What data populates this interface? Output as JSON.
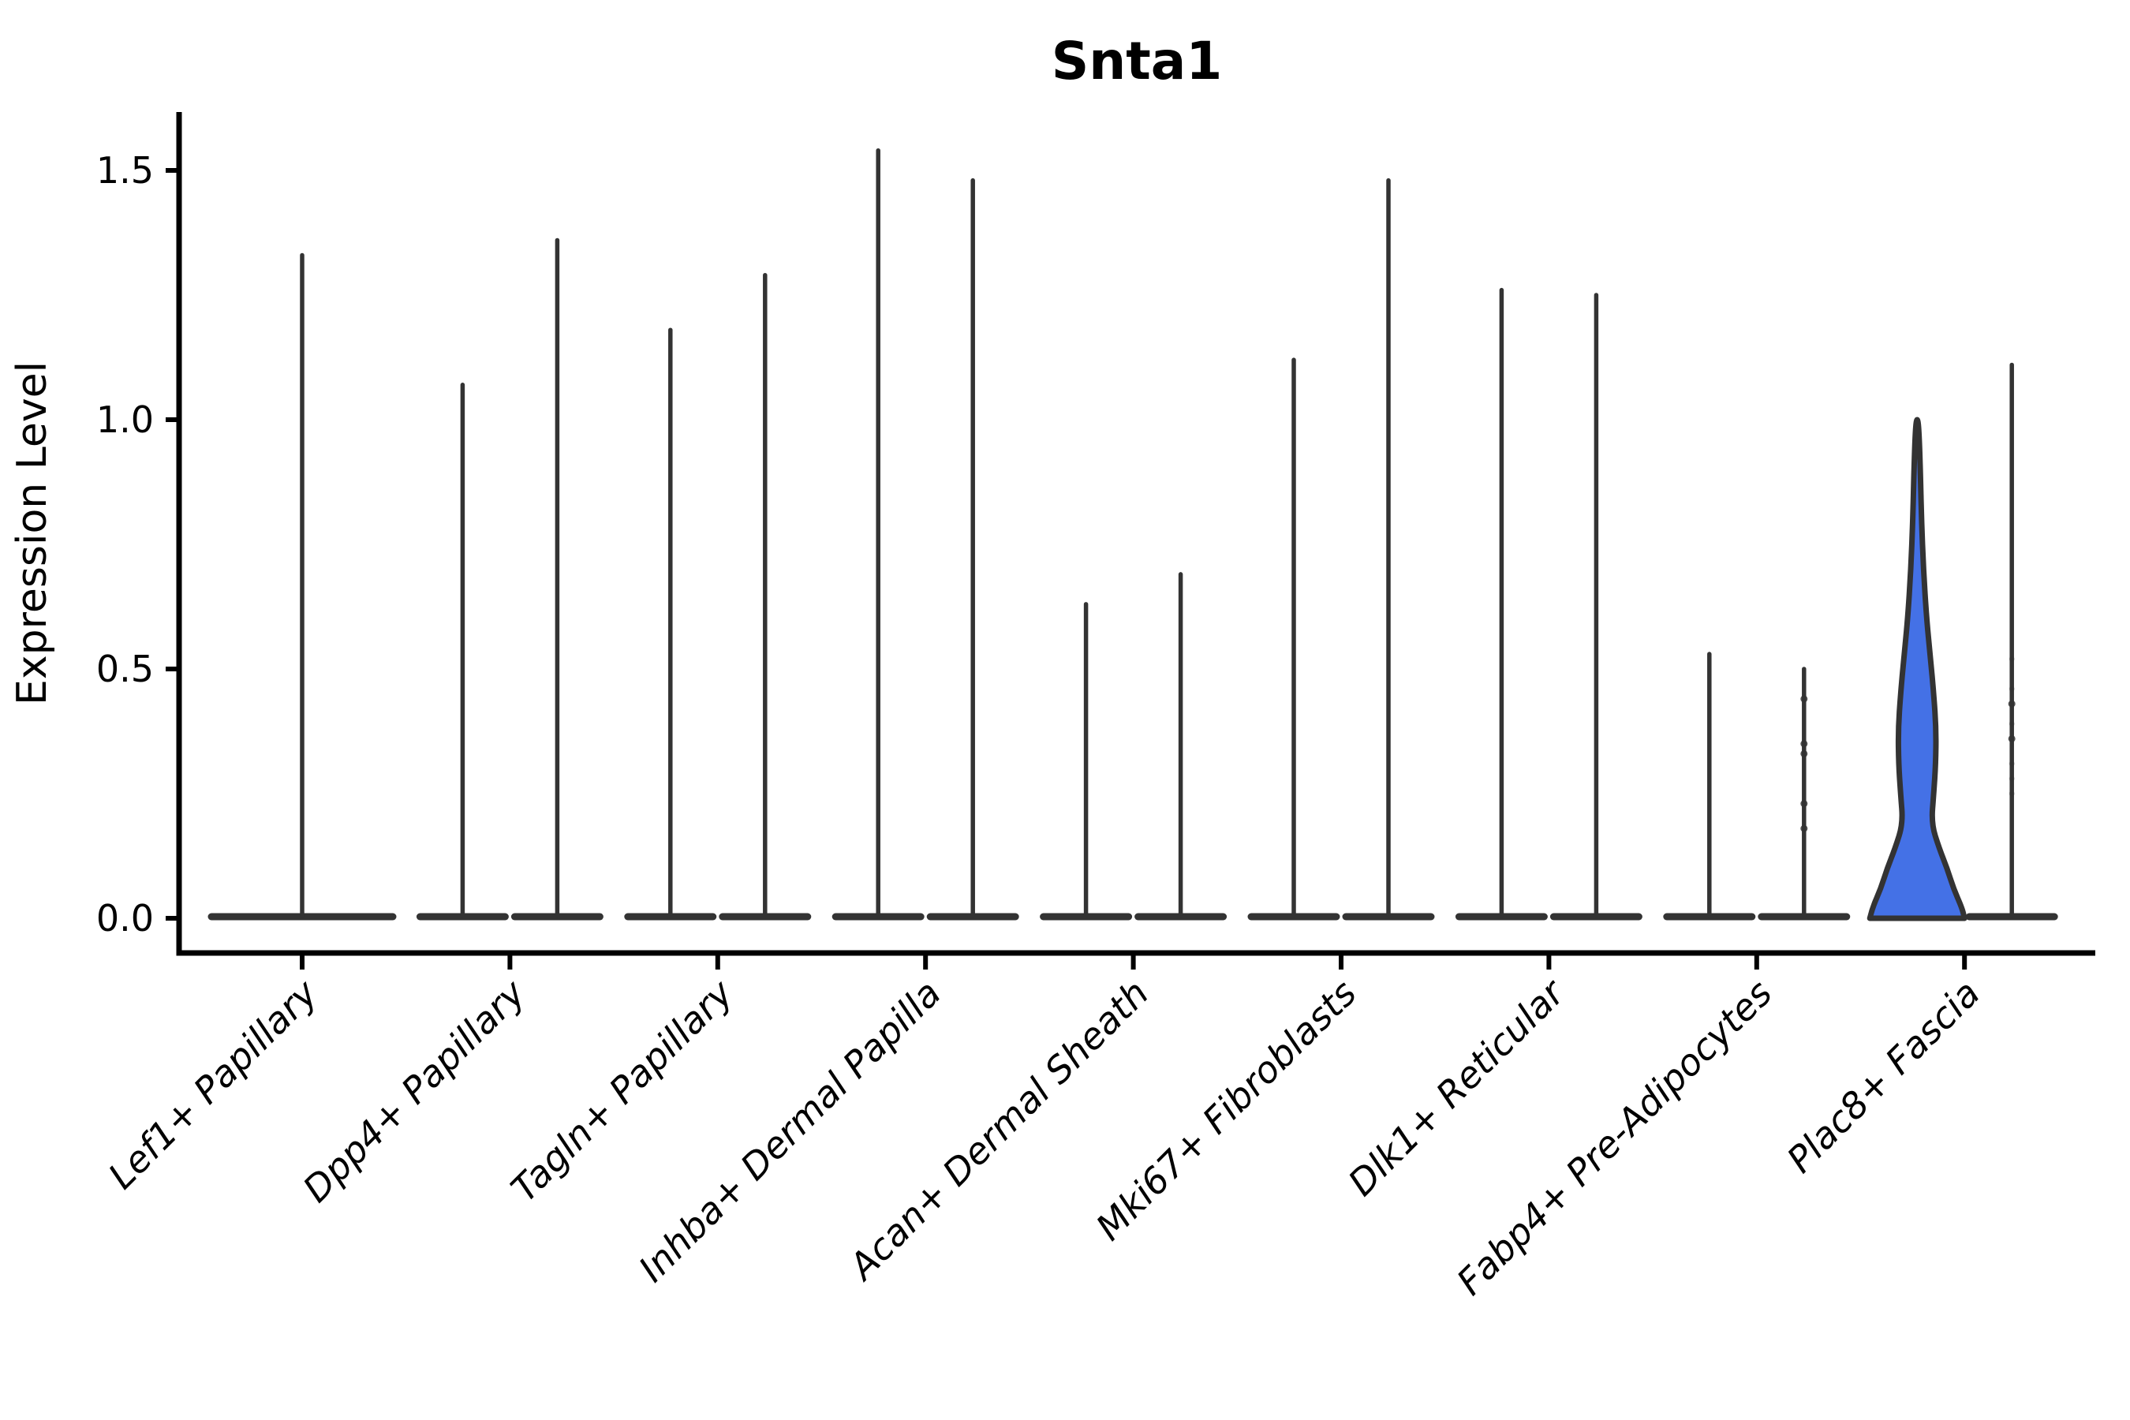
{
  "title": "Snta1",
  "y_axis": {
    "label": "Expression Level"
  },
  "colors": {
    "background": "#ffffff",
    "violin_line": "#333333",
    "axis": "#000000",
    "highlight_fill": "#4471e6"
  },
  "chart_data": {
    "type": "violin",
    "title": "Snta1",
    "xlabel": "",
    "ylabel": "Expression Level",
    "ylim": [
      0,
      1.65
    ],
    "yticks": [
      0.0,
      0.5,
      1.0,
      1.5
    ],
    "ytick_labels": [
      "0.0",
      "0.5",
      "1.0",
      "1.5"
    ],
    "grid": false,
    "legend": "none",
    "note": "Each category shows narrow violins (nearly all-zero expression) with a flat density base at 0 and a thin spike to the max expressing cell; the first Plac8+ Fascia violin is a filled blue violin with visible density body.",
    "categories": [
      {
        "label": "Lef1+ Papillary",
        "violins": [
          {
            "max": 1.33,
            "offset": 0,
            "base_halfwidth": 115
          }
        ]
      },
      {
        "label": "Dpp4+ Papillary",
        "violins": [
          {
            "max": 1.07,
            "offset": -60,
            "base_halfwidth": 54
          },
          {
            "max": 1.36,
            "offset": 60,
            "base_halfwidth": 54
          }
        ]
      },
      {
        "label": "Tagln+ Papillary",
        "violins": [
          {
            "max": 1.18,
            "offset": -60,
            "base_halfwidth": 54
          },
          {
            "max": 1.29,
            "offset": 60,
            "base_halfwidth": 54
          }
        ]
      },
      {
        "label": "Inhba+ Dermal Papilla",
        "violins": [
          {
            "max": 1.54,
            "offset": -60,
            "base_halfwidth": 54
          },
          {
            "max": 1.48,
            "offset": 60,
            "base_halfwidth": 54
          }
        ]
      },
      {
        "label": "Acan+ Dermal Sheath",
        "violins": [
          {
            "max": 0.63,
            "offset": -60,
            "base_halfwidth": 54
          },
          {
            "max": 0.69,
            "offset": 60,
            "base_halfwidth": 54
          }
        ]
      },
      {
        "label": "Mki67+ Fibroblasts",
        "violins": [
          {
            "max": 1.12,
            "offset": -60,
            "base_halfwidth": 54
          },
          {
            "max": 1.48,
            "offset": 60,
            "base_halfwidth": 54
          }
        ]
      },
      {
        "label": "Dlk1+ Reticular",
        "violins": [
          {
            "max": 1.26,
            "offset": -60,
            "base_halfwidth": 54
          },
          {
            "max": 1.25,
            "offset": 60,
            "base_halfwidth": 54
          }
        ]
      },
      {
        "label": "Fabp4+ Pre-Adipocytes",
        "violins": [
          {
            "max": 0.53,
            "offset": -60,
            "base_halfwidth": 54
          },
          {
            "max": 0.5,
            "offset": 60,
            "base_halfwidth": 54,
            "points": [
              0.44,
              0.35,
              0.33,
              0.23,
              0.18
            ]
          }
        ]
      },
      {
        "label": "Plac8+ Fascia",
        "violins": [
          {
            "max": 1.0,
            "offset": -60,
            "base_halfwidth": 60,
            "filled": true,
            "width_profile": [
              [
                0.0,
                60
              ],
              [
                0.02,
                57
              ],
              [
                0.06,
                46
              ],
              [
                0.1,
                38
              ],
              [
                0.14,
                28
              ],
              [
                0.19,
                18
              ],
              [
                0.25,
                21
              ],
              [
                0.31,
                23.5
              ],
              [
                0.38,
                24
              ],
              [
                0.45,
                21
              ],
              [
                0.52,
                17
              ],
              [
                0.6,
                12
              ],
              [
                0.7,
                8
              ],
              [
                0.8,
                5.5
              ],
              [
                0.9,
                4
              ],
              [
                0.97,
                2.5
              ],
              [
                1.0,
                1
              ]
            ]
          },
          {
            "max": 1.11,
            "offset": 60,
            "base_halfwidth": 54,
            "points": [
              0.43,
              0.36
            ],
            "faint_points": [
              0.52,
              0.46,
              0.39,
              0.31,
              0.28,
              0.25
            ]
          }
        ]
      }
    ]
  }
}
